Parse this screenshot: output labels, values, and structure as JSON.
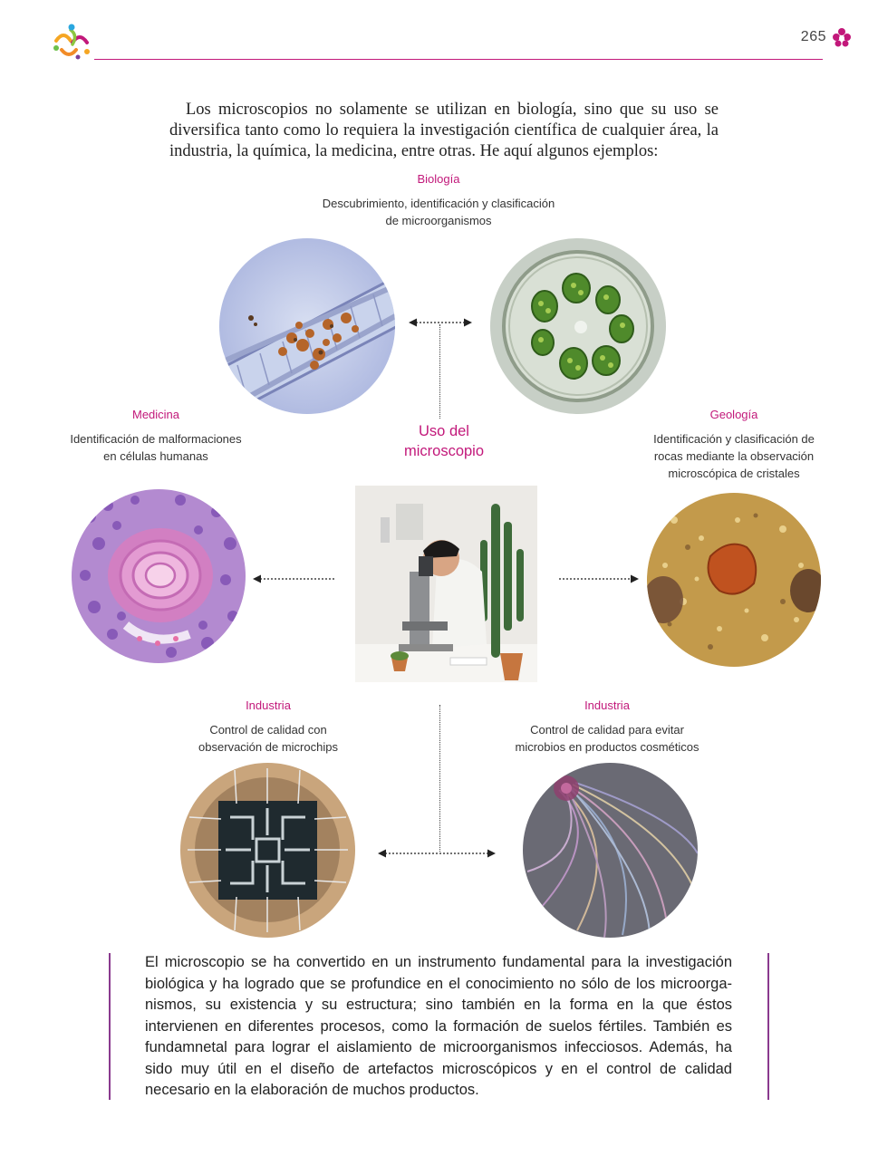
{
  "header": {
    "page_number": "265"
  },
  "intro": "Los microscopios no solamente se utilizan en biología, sino que su uso se diversifica tanto como lo requiera la investigación científica de cualquier área, la industria, la química, la medicina, entre otras. He aquí algunos ejemplos:",
  "center": {
    "line1": "Uso del",
    "line2": "microscopio"
  },
  "biologia": {
    "title": "Biología",
    "line1": "Descubrimiento, identificación y clasificación",
    "line2": "de microorganismos"
  },
  "medicina": {
    "title": "Medicina",
    "line1": "Identificación de malformaciones",
    "line2": "en células humanas"
  },
  "geologia": {
    "title": "Geología",
    "line1": "Identificación y clasificación de",
    "line2": "rocas mediante la observación",
    "line3": "microscópica de cristales"
  },
  "industria_chips": {
    "title": "Industria",
    "line1": "Control de calidad con",
    "line2": "observación de microchips"
  },
  "industria_cosmeticos": {
    "title": "Industria",
    "line1": "Control de calidad para evitar",
    "line2": "microbios en productos cosméticos"
  },
  "summary": "El microscopio se ha convertido en un instrumento fundamental para la investigación biológica y ha logrado que se profundice en el conocimiento no sólo de los microorga­nismos, su existencia y su estructura; sino también en la forma en la que éstos intervienen en diferentes procesos, como la formación de suelos fértiles. También es fundamnetal para lograr el aislamiento de microorganismos infecciosos. Además, ha sido muy útil en el diseño de artefactos microscópicos y en el control de calidad necesario en la elaboración de muchos productos.",
  "colors": {
    "accent": "#c2187a",
    "bar": "#8a3a8e"
  },
  "icons": {
    "logo": "colorful-people-logo-icon",
    "corner": "magenta-flower-icon"
  }
}
